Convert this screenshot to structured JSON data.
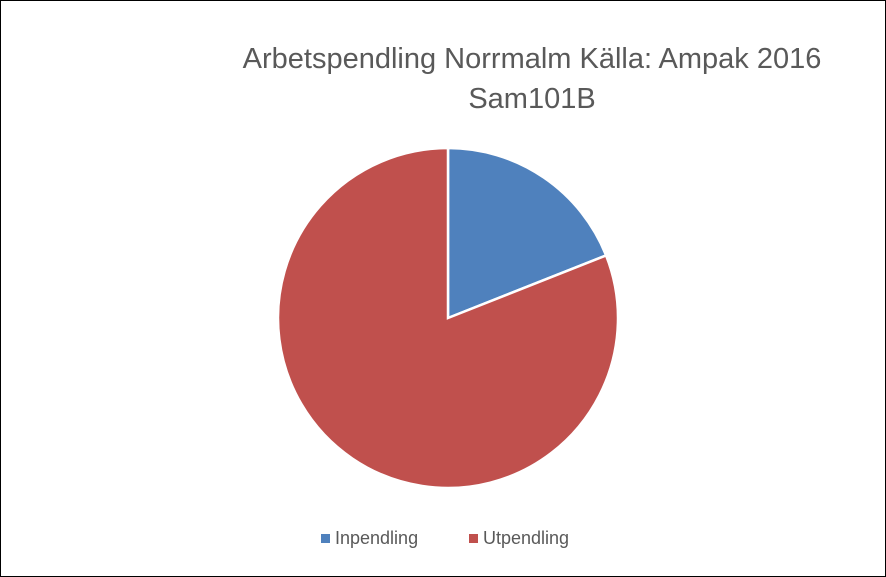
{
  "chart_data": {
    "type": "pie",
    "title": "Arbetspendling Norrmalm Källa: Ampak 2016 Sam101B",
    "categories": [
      "Inpendling",
      "Utpendling"
    ],
    "values": [
      19,
      81
    ],
    "colors": [
      "#4f81bd",
      "#c0504d"
    ],
    "legend": "bottom"
  }
}
